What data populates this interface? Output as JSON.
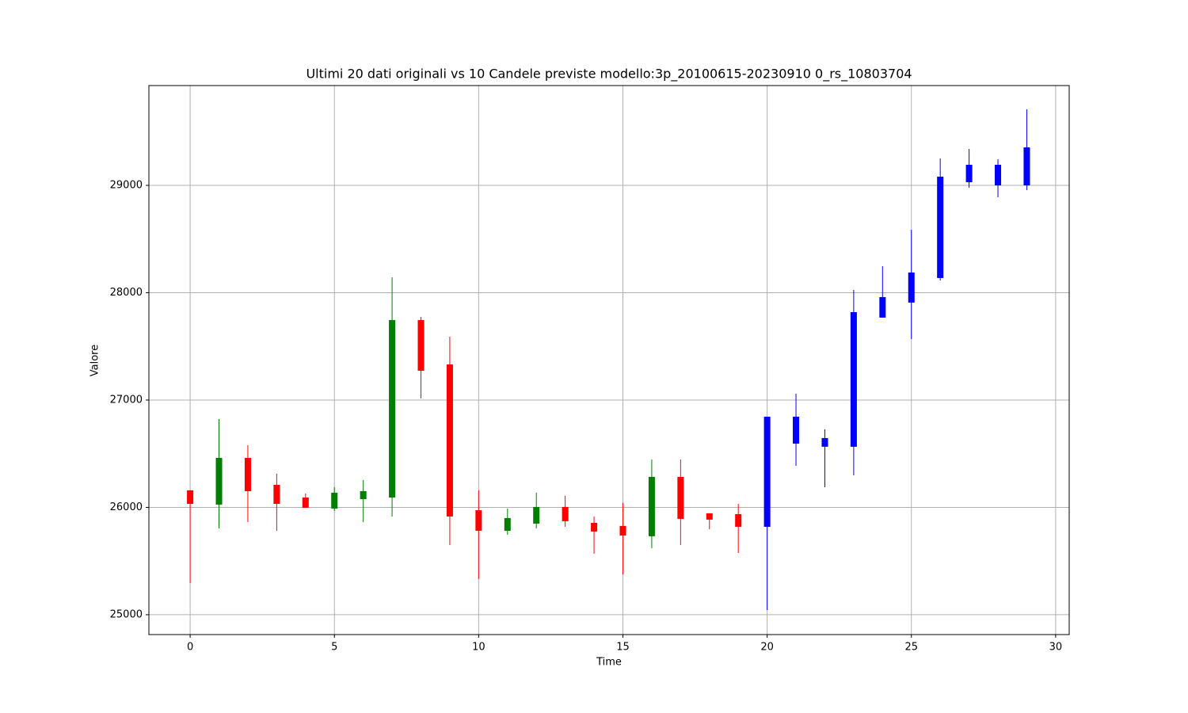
{
  "chart_data": {
    "type": "candlestick",
    "title": "Ultimi 20 dati originali vs 10 Candele previste modello:3p_20100615-20230910 0_rs_10803704",
    "x_label": "Time",
    "y_label": "Valore",
    "xlim": [
      -1.43,
      30.47
    ],
    "ylim": [
      24815,
      29930
    ],
    "xticks": [
      0,
      5,
      10,
      15,
      20,
      25,
      30
    ],
    "yticks": [
      25000,
      26000,
      27000,
      28000,
      29000
    ],
    "grid": true,
    "candles": [
      {
        "x": 0,
        "open": 26159,
        "high": 26159,
        "low": 25295,
        "close": 26033,
        "color": "red"
      },
      {
        "x": 1,
        "open": 26026,
        "high": 26823,
        "low": 25804,
        "close": 26461,
        "color": "green"
      },
      {
        "x": 2,
        "open": 26461,
        "high": 26579,
        "low": 25863,
        "close": 26151,
        "color": "red"
      },
      {
        "x": 3,
        "open": 26210,
        "high": 26314,
        "low": 25782,
        "close": 26033,
        "color": "red"
      },
      {
        "x": 4,
        "open": 26092,
        "high": 26129,
        "low": 25996,
        "close": 25996,
        "color": "red"
      },
      {
        "x": 5,
        "open": 25989,
        "high": 26188,
        "low": 25967,
        "close": 26137,
        "color": "green"
      },
      {
        "x": 6,
        "open": 26077,
        "high": 26255,
        "low": 25863,
        "close": 26151,
        "color": "green"
      },
      {
        "x": 7,
        "open": 26092,
        "high": 28144,
        "low": 25915,
        "close": 27745,
        "color": "green"
      },
      {
        "x": 8,
        "open": 27745,
        "high": 27775,
        "low": 27015,
        "close": 27273,
        "color": "red"
      },
      {
        "x": 9,
        "open": 27332,
        "high": 27590,
        "low": 25649,
        "close": 25915,
        "color": "red"
      },
      {
        "x": 10,
        "open": 25974,
        "high": 26159,
        "low": 25332,
        "close": 25782,
        "color": "red"
      },
      {
        "x": 11,
        "open": 25782,
        "high": 25989,
        "low": 25745,
        "close": 25900,
        "color": "green"
      },
      {
        "x": 12,
        "open": 25849,
        "high": 26137,
        "low": 25804,
        "close": 26004,
        "color": "green"
      },
      {
        "x": 13,
        "open": 26004,
        "high": 26107,
        "low": 25819,
        "close": 25871,
        "color": "red"
      },
      {
        "x": 14,
        "open": 25856,
        "high": 25915,
        "low": 25568,
        "close": 25775,
        "color": "red"
      },
      {
        "x": 15,
        "open": 25827,
        "high": 26041,
        "low": 25376,
        "close": 25738,
        "color": "red"
      },
      {
        "x": 16,
        "open": 25731,
        "high": 26446,
        "low": 25620,
        "close": 26284,
        "color": "green"
      },
      {
        "x": 17,
        "open": 26284,
        "high": 26446,
        "low": 25649,
        "close": 25893,
        "color": "red"
      },
      {
        "x": 18,
        "open": 25945,
        "high": 25945,
        "low": 25797,
        "close": 25886,
        "color": "red"
      },
      {
        "x": 19,
        "open": 25937,
        "high": 26033,
        "low": 25576,
        "close": 25819,
        "color": "red"
      },
      {
        "x": 20,
        "open": 25819,
        "high": 26845,
        "low": 25044,
        "close": 26845,
        "color": "blue"
      },
      {
        "x": 21,
        "open": 26845,
        "high": 27059,
        "low": 26387,
        "close": 26594,
        "color": "blue"
      },
      {
        "x": 22,
        "open": 26646,
        "high": 26727,
        "low": 26188,
        "close": 26565,
        "color": "blue"
      },
      {
        "x": 23,
        "open": 26565,
        "high": 28026,
        "low": 26299,
        "close": 27819,
        "color": "blue"
      },
      {
        "x": 24,
        "open": 27768,
        "high": 28247,
        "low": 27768,
        "close": 27959,
        "color": "blue"
      },
      {
        "x": 25,
        "open": 27908,
        "high": 28587,
        "low": 27568,
        "close": 28188,
        "color": "blue"
      },
      {
        "x": 26,
        "open": 28137,
        "high": 29251,
        "low": 28114,
        "close": 29081,
        "color": "blue"
      },
      {
        "x": 27,
        "open": 29029,
        "high": 29339,
        "low": 28978,
        "close": 29192,
        "color": "blue"
      },
      {
        "x": 28,
        "open": 29000,
        "high": 29244,
        "low": 28889,
        "close": 29192,
        "color": "blue"
      },
      {
        "x": 29,
        "open": 29000,
        "high": 29708,
        "low": 28956,
        "close": 29354,
        "color": "blue"
      }
    ]
  }
}
